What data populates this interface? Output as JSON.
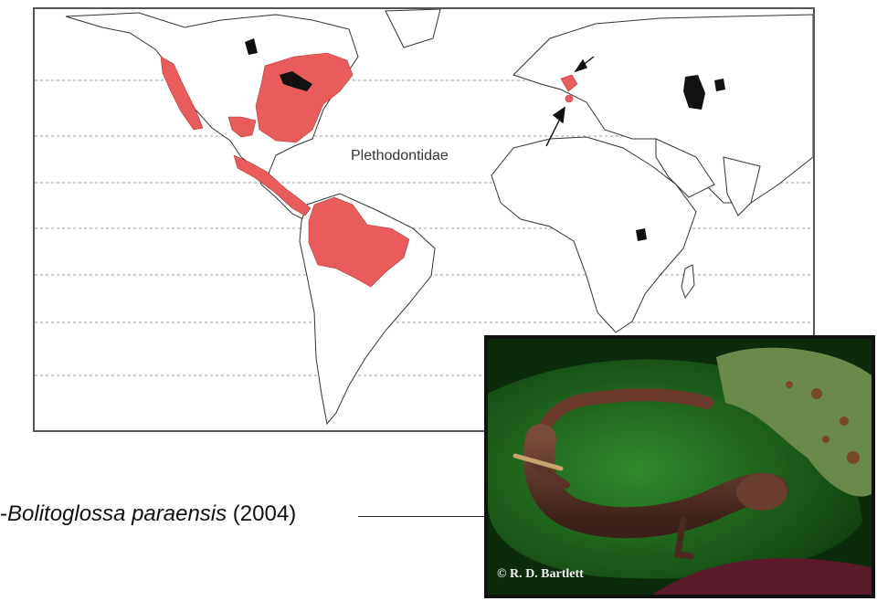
{
  "map": {
    "label": "Plethodontidae",
    "colors": {
      "plethodontid_range": "#e85c5c",
      "land_outline": "#333333",
      "latitude_lines": "#999999",
      "water_bodies": "#111111"
    }
  },
  "caption": {
    "prefix": "-",
    "species": "Bolitoglossa paraensis",
    "year": " (2004)"
  },
  "photo": {
    "credit": "© R. D. Bartlett"
  }
}
